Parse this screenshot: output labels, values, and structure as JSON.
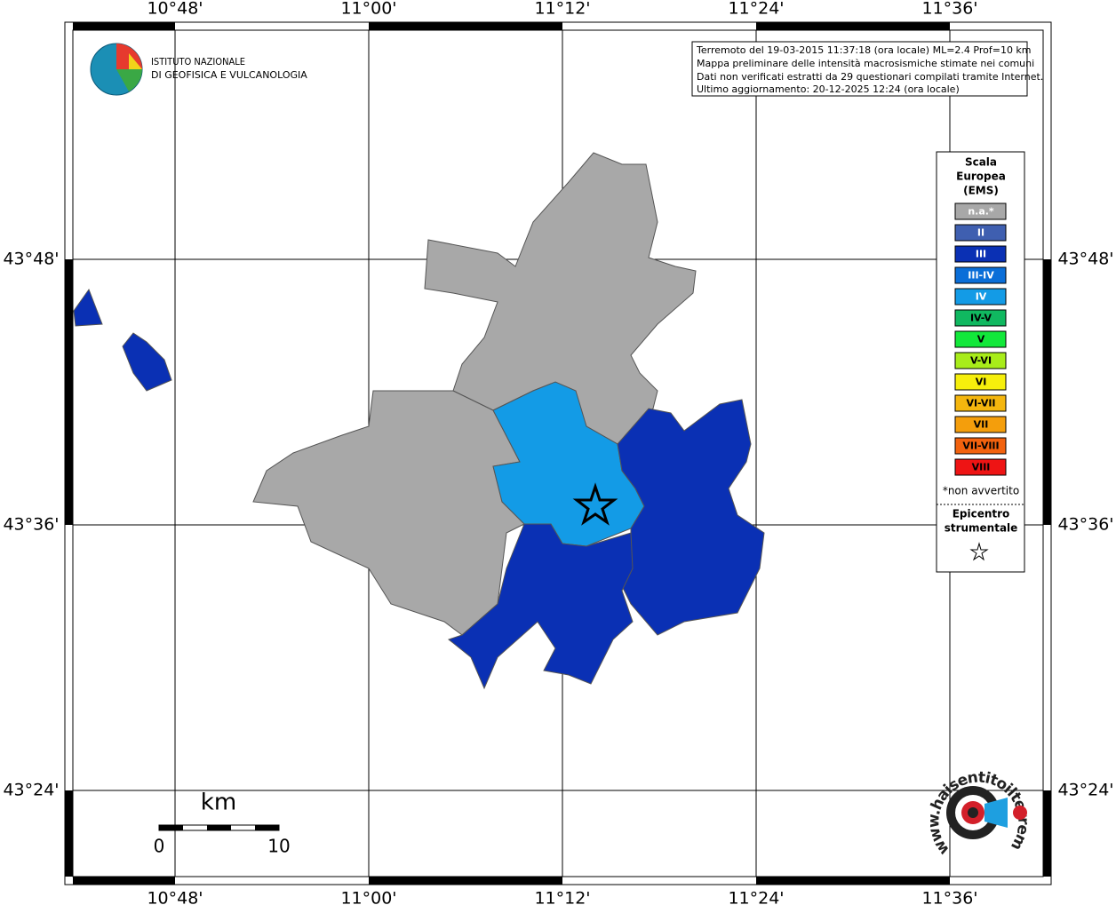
{
  "info_box": [
    "Terremoto del 19-03-2015 11:37:18 (ora locale) ML=2.4 Prof=10 km",
    "Mappa preliminare delle intensità macrosismiche stimate nei comuni",
    "Dati non verificati estratti da 29 questionari compilati tramite Internet.",
    "Ultimo aggiornamento: 20-12-2025 12:24 (ora locale)"
  ],
  "logo": [
    "ISTITUTO NAZIONALE",
    "DI GEOFISICA E VULCANOLOGIA"
  ],
  "longitudes": [
    "10°48'",
    "11°00'",
    "11°12'",
    "11°24'",
    "11°36'"
  ],
  "latitudes": [
    "43°48'",
    "43°36'",
    "43°24'"
  ],
  "legend": {
    "title": [
      "Scala",
      "Europea",
      "(EMS)"
    ],
    "levels": [
      {
        "label": "n.a.*",
        "color": "#a8a8a8"
      },
      {
        "label": "II",
        "color": "#3f5fb0"
      },
      {
        "label": "III",
        "color": "#0a30b4"
      },
      {
        "label": "III-IV",
        "color": "#0a6ed8"
      },
      {
        "label": "IV",
        "color": "#139be6"
      },
      {
        "label": "IV-V",
        "color": "#10b860"
      },
      {
        "label": "V",
        "color": "#12e83a"
      },
      {
        "label": "V-VI",
        "color": "#a8ec1a"
      },
      {
        "label": "VI",
        "color": "#f6ef0c"
      },
      {
        "label": "VI-VII",
        "color": "#f4b60e"
      },
      {
        "label": "VII",
        "color": "#f49e0c"
      },
      {
        "label": "VII-VIII",
        "color": "#f2620e"
      },
      {
        "label": "VIII",
        "color": "#ee1414"
      }
    ],
    "note": "*non avvertito",
    "epicenter": [
      "Epicentro",
      "strumentale"
    ]
  },
  "scale_bar": {
    "unit": "km",
    "labels": [
      "0",
      "10"
    ]
  },
  "site": "www.haisentitoilterremoto.it"
}
